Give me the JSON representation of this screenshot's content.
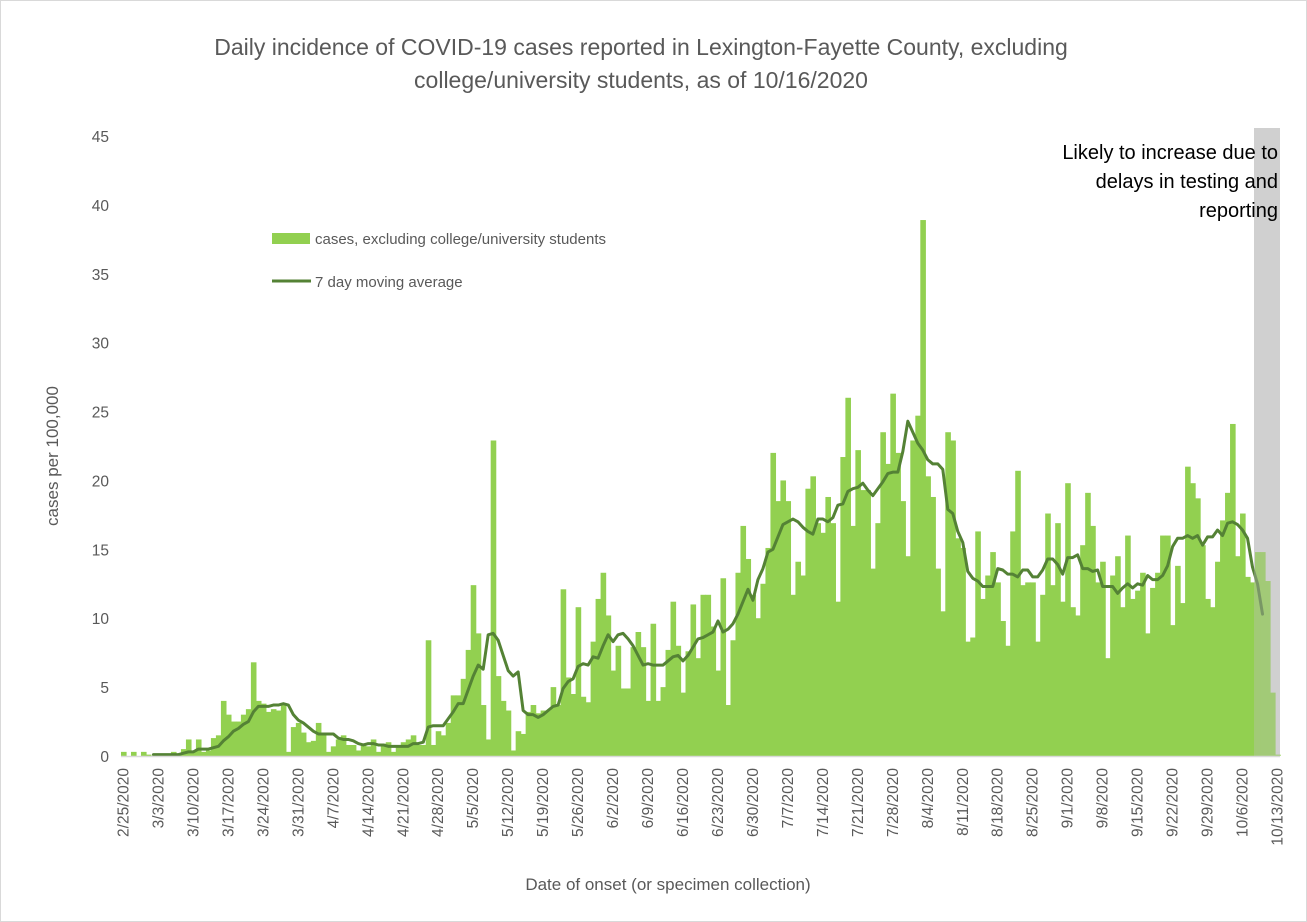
{
  "chart_data": {
    "type": "bar",
    "title_line1": "Daily incidence of COVID-19 cases reported in Lexington-Fayette County, excluding",
    "title_line2": "college/university students, as of 10/16/2020",
    "xlabel": "Date of onset (or specimen collection)",
    "ylabel": "cases per 100,000",
    "ylim": [
      0,
      45
    ],
    "yticks": [
      "0",
      "5",
      "10",
      "15",
      "20",
      "25",
      "30",
      "35",
      "40",
      "45"
    ],
    "xtick_labels": [
      "2/25/2020",
      "3/3/2020",
      "3/10/2020",
      "3/17/2020",
      "3/24/2020",
      "3/31/2020",
      "4/7/2020",
      "4/14/2020",
      "4/21/2020",
      "4/28/2020",
      "5/5/2020",
      "5/12/2020",
      "5/19/2020",
      "5/26/2020",
      "6/2/2020",
      "6/9/2020",
      "6/16/2020",
      "6/23/2020",
      "6/30/2020",
      "7/7/2020",
      "7/14/2020",
      "7/21/2020",
      "7/28/2020",
      "8/4/2020",
      "8/11/2020",
      "8/18/2020",
      "8/25/2020",
      "9/1/2020",
      "9/8/2020",
      "9/15/2020",
      "9/22/2020",
      "9/29/2020",
      "10/6/2020",
      "10/13/2020"
    ],
    "grid": false,
    "legend_placement": "upper-left",
    "colors": {
      "bars": "#92d050",
      "line": "#548235",
      "shade": "#bfbfbf"
    },
    "annotation": [
      "Likely to increase due to",
      "delays in testing and",
      "reporting"
    ],
    "shaded_region": {
      "start": "10/9/2020",
      "end": "10/16/2020"
    },
    "start_date": "2/25/2020",
    "end_date": "10/16/2020",
    "series": [
      {
        "name": "cases, excluding college/university students",
        "kind": "bar",
        "values": [
          0.3,
          0,
          0.3,
          0,
          0.3,
          0.1,
          0,
          0.1,
          0.1,
          0.1,
          0.3,
          0.1,
          0.5,
          1.2,
          0.3,
          1.2,
          0.3,
          0.4,
          1.3,
          1.5,
          4,
          3,
          2.5,
          2.5,
          3,
          3.4,
          6.8,
          4,
          3.8,
          3.2,
          3.4,
          3.3,
          3.8,
          0.3,
          2.1,
          2.4,
          1.7,
          1,
          1.1,
          2.4,
          1.7,
          0.3,
          0.7,
          1.2,
          1.5,
          0.8,
          0.8,
          0.4,
          0.8,
          0.7,
          1.2,
          0.3,
          0.9,
          1,
          0.3,
          0.7,
          1,
          1.2,
          1.5,
          0.8,
          0.8,
          8.4,
          0.8,
          1.8,
          1.5,
          2.4,
          4.4,
          4.4,
          5.6,
          7.7,
          12.4,
          8.9,
          3.7,
          1.2,
          22.9,
          5.8,
          4,
          3.3,
          0.4,
          1.8,
          1.6,
          3.2,
          3.7,
          3.1,
          3.3,
          3.3,
          5,
          3.7,
          12.1,
          5.7,
          4.5,
          10.8,
          4.3,
          3.9,
          8.3,
          11.4,
          13.3,
          10.2,
          6.2,
          8,
          4.9,
          4.9,
          7.9,
          9,
          7.9,
          4,
          9.6,
          4,
          5,
          7.7,
          11.2,
          8,
          4.6,
          7.6,
          11,
          7.1,
          11.7,
          11.7,
          9.4,
          6.2,
          12.9,
          3.7,
          8.4,
          13.3,
          16.7,
          14.3,
          11.7,
          10,
          12.5,
          15.1,
          22,
          18.5,
          20,
          18.5,
          11.7,
          14.1,
          13.1,
          19.4,
          20.3,
          16.9,
          16.2,
          18.8,
          16.9,
          11.2,
          21.7,
          26,
          16.7,
          22.2,
          19.3,
          19.3,
          13.6,
          16.9,
          23.5,
          21.2,
          26.3,
          22,
          18.5,
          14.5,
          22.9,
          24.7,
          38.9,
          20.3,
          18.8,
          13.6,
          10.5,
          23.5,
          22.9,
          15.8,
          15.1,
          8.3,
          8.6,
          16.3,
          11.4,
          13.1,
          14.8,
          12.6,
          9.8,
          8,
          16.3,
          20.7,
          12.4,
          12.6,
          12.6,
          8.3,
          11.7,
          17.6,
          12.4,
          16.9,
          11.2,
          19.8,
          10.8,
          10.2,
          15.3,
          19.1,
          16.7,
          12.6,
          14.1,
          7.1,
          13.1,
          14.5,
          10.8,
          16,
          11.4,
          12,
          13.3,
          8.9,
          12.2,
          13.3,
          16,
          16,
          9.5,
          13.8,
          11.1,
          21,
          19.8,
          18.7,
          15.3,
          11.4,
          10.8,
          14.1,
          17.1,
          19.1,
          24.1,
          14.5,
          17.6,
          13,
          12.6,
          14.8,
          14.8,
          12.7,
          4.6,
          0.1
        ]
      },
      {
        "name": "7 day moving average",
        "kind": "line",
        "values": [
          null,
          null,
          null,
          null,
          null,
          null,
          0.1,
          0.1,
          0.1,
          0.1,
          0.1,
          0.1,
          0.2,
          0.3,
          0.3,
          0.5,
          0.5,
          0.5,
          0.6,
          0.7,
          1.1,
          1.4,
          1.8,
          2,
          2.3,
          2.5,
          3.2,
          3.6,
          3.6,
          3.6,
          3.7,
          3.7,
          3.8,
          3.7,
          3,
          2.6,
          2.4,
          2.1,
          1.8,
          1.6,
          1.6,
          1.6,
          1.6,
          1.3,
          1.2,
          1.2,
          1.1,
          0.9,
          0.8,
          0.9,
          0.9,
          0.8,
          0.8,
          0.7,
          0.7,
          0.7,
          0.7,
          0.7,
          0.9,
          0.9,
          1,
          2.1,
          2.2,
          2.2,
          2.2,
          2.7,
          3.2,
          3.8,
          3.8,
          4.8,
          5.8,
          6.6,
          6.3,
          8.8,
          8.9,
          8.4,
          7.3,
          6.2,
          5.8,
          6.1,
          3.3,
          3,
          3,
          2.8,
          3,
          3.3,
          3.6,
          3.7,
          4.9,
          5.4,
          5.6,
          6.5,
          6.7,
          6.6,
          7.2,
          7.1,
          8,
          8.8,
          8.3,
          8.8,
          8.9,
          8.5,
          8,
          7.3,
          6.6,
          6.7,
          6.6,
          6.6,
          6.6,
          6.9,
          7.2,
          7.3,
          6.9,
          7.3,
          7.9,
          8.5,
          8.6,
          8.8,
          9,
          9.8,
          9,
          9.2,
          9.6,
          10.3,
          11.2,
          12.1,
          11.3,
          12.8,
          13.6,
          14.8,
          15,
          15.9,
          16.8,
          17,
          17.2,
          17,
          16.6,
          16.3,
          16.1,
          17.2,
          17.2,
          17,
          17.3,
          18.2,
          18.3,
          19.2,
          19.4,
          19.5,
          19.8,
          19.3,
          18.9,
          19.4,
          19.9,
          20.5,
          20.6,
          20.6,
          22.1,
          24.3,
          23.5,
          22.7,
          22.2,
          21.5,
          21.2,
          21.2,
          20.8,
          17.9,
          17.6,
          16.3,
          15.5,
          13.4,
          12.9,
          12.7,
          12.3,
          12.3,
          12.3,
          13.6,
          13.5,
          13.2,
          13.2,
          13,
          13.5,
          13.5,
          13,
          13,
          13.5,
          14.3,
          14.3,
          13.9,
          13.2,
          14.4,
          14.4,
          14.6,
          13.6,
          13.6,
          13.4,
          13.5,
          12.3,
          12.3,
          12.3,
          11.8,
          12.2,
          12.5,
          12.2,
          12.5,
          12.4,
          13.1,
          12.8,
          12.8,
          13.1,
          13.8,
          15.2,
          15.8,
          15.8,
          16,
          15.8,
          16,
          15.3,
          15.9,
          15.9,
          16.4,
          16,
          16.9,
          17,
          16.8,
          16.4,
          15.8,
          13.7,
          12.5,
          10.3
        ]
      }
    ]
  }
}
